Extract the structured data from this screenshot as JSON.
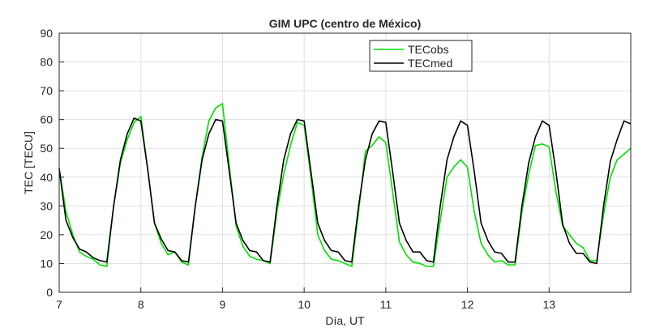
{
  "chart_data": {
    "type": "line",
    "title": "GIM UPC (centro de México)",
    "x_label": "Día, UT",
    "y_label": "TEC [TECU]",
    "x": [
      7,
      7.083,
      7.167,
      7.25,
      7.333,
      7.417,
      7.5,
      7.583,
      7.667,
      7.75,
      7.833,
      7.917,
      8,
      8.083,
      8.167,
      8.25,
      8.333,
      8.417,
      8.5,
      8.583,
      8.667,
      8.75,
      8.833,
      8.917,
      9,
      9.083,
      9.167,
      9.25,
      9.333,
      9.417,
      9.5,
      9.583,
      9.667,
      9.75,
      9.833,
      9.917,
      10,
      10.083,
      10.167,
      10.25,
      10.333,
      10.417,
      10.5,
      10.583,
      10.667,
      10.75,
      10.833,
      10.917,
      11,
      11.083,
      11.167,
      11.25,
      11.333,
      11.417,
      11.5,
      11.583,
      11.667,
      11.75,
      11.833,
      11.917,
      12,
      12.083,
      12.167,
      12.25,
      12.333,
      12.417,
      12.5,
      12.583,
      12.667,
      12.75,
      12.833,
      12.917,
      13,
      13.083,
      13.167,
      13.25,
      13.333,
      13.417,
      13.5,
      13.583,
      13.667,
      13.75,
      13.833,
      13.917,
      14
    ],
    "series": [
      {
        "name": "TECobs",
        "color": "#00e000",
        "values": [
          43,
          28,
          20,
          14,
          12.5,
          11.5,
          9.5,
          9,
          30,
          45,
          53,
          59,
          61,
          43,
          24,
          17,
          13,
          14,
          10.5,
          9.5,
          30,
          47,
          59.5,
          64,
          65.5,
          44,
          23,
          16,
          12.5,
          11.5,
          11,
          10,
          28,
          41,
          51,
          59,
          58,
          40,
          20,
          14.5,
          11.5,
          11,
          10,
          9,
          28,
          49,
          51,
          54,
          52,
          35,
          17.5,
          13,
          10.5,
          10,
          9,
          9,
          25,
          40,
          43.5,
          46,
          43.5,
          28,
          17,
          13,
          10.5,
          11,
          9.5,
          9.5,
          28,
          41,
          51,
          51.5,
          50.5,
          35,
          23,
          20,
          17,
          15.5,
          11,
          11,
          27,
          40,
          46,
          48,
          50
        ]
      },
      {
        "name": "TECmed",
        "color": "#000000",
        "values": [
          43,
          25,
          19,
          15,
          14,
          12,
          11,
          10.5,
          30,
          46,
          55,
          60.5,
          59.5,
          43,
          24,
          18.5,
          14.5,
          14,
          11,
          10.5,
          30,
          46,
          55,
          60,
          59.5,
          42,
          24,
          18,
          14.5,
          14,
          11,
          10.5,
          30,
          46,
          55,
          60,
          59.5,
          42,
          24,
          18,
          14.5,
          14,
          11,
          10.5,
          30,
          46,
          55,
          59.5,
          59,
          42,
          24,
          18,
          14,
          14,
          11,
          10.5,
          30,
          46,
          54,
          59.5,
          58,
          42,
          24,
          18,
          14,
          13.5,
          10.5,
          10.5,
          30,
          45,
          54,
          59.5,
          58,
          42,
          23.5,
          17,
          13.5,
          13.5,
          10.5,
          10,
          30,
          45.5,
          53,
          59.5,
          58.5
        ]
      }
    ],
    "xlim": [
      7,
      14
    ],
    "xticks": [
      7,
      8,
      9,
      10,
      11,
      12,
      13
    ],
    "ylim": [
      0,
      90
    ],
    "yticks": [
      0,
      10,
      20,
      30,
      40,
      50,
      60,
      70,
      80,
      90
    ],
    "grid": true,
    "legend": "top"
  }
}
